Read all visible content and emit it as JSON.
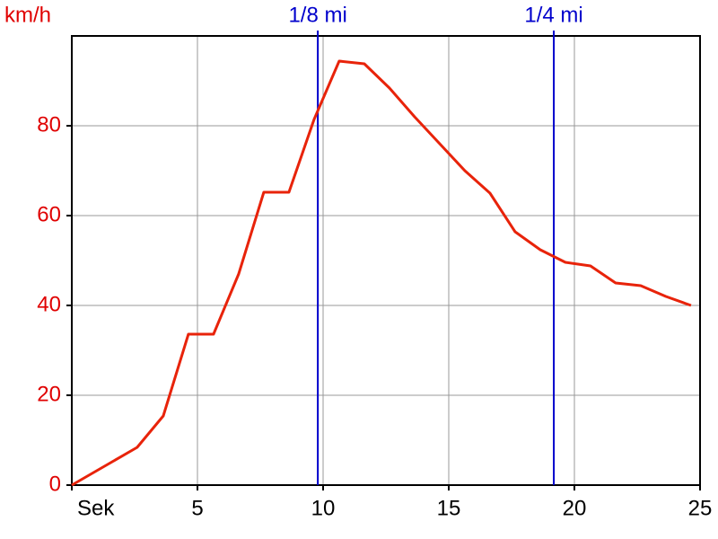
{
  "chart_data": {
    "type": "line",
    "y_label": "km/h",
    "x": [
      0,
      2.6,
      3.64,
      4.64,
      5.64,
      6.64,
      7.64,
      8.64,
      9.64,
      10.64,
      11.64,
      12.64,
      13.64,
      14.64,
      15.64,
      16.64,
      17.64,
      18.64,
      19.64,
      20.64,
      21.64,
      22.64,
      23.64,
      24.64
    ],
    "series": [
      {
        "color": "#e8230a",
        "values": [
          0,
          8.4,
          15.4,
          33.6,
          33.6,
          47,
          65.2,
          65.2,
          81.4,
          94.4,
          93.8,
          88.4,
          82,
          76,
          70,
          65,
          56.4,
          52.4,
          49.6,
          48.8,
          45,
          44.4,
          42,
          40
        ]
      }
    ],
    "markers": [
      {
        "label": "1/8 mi",
        "x": 9.79
      },
      {
        "label": "1/4 mi",
        "x": 19.18
      }
    ],
    "marker_color": "#0000cc",
    "y_tick_color": "#e00000",
    "grid_color": "#999999",
    "xlim": [
      0,
      25
    ],
    "ylim": [
      0,
      100
    ],
    "xticks": [
      {
        "value": 0,
        "label": "Sek"
      },
      5,
      10,
      15,
      20,
      25
    ],
    "yticks": [
      0,
      20,
      40,
      60,
      80
    ],
    "grid": true
  }
}
